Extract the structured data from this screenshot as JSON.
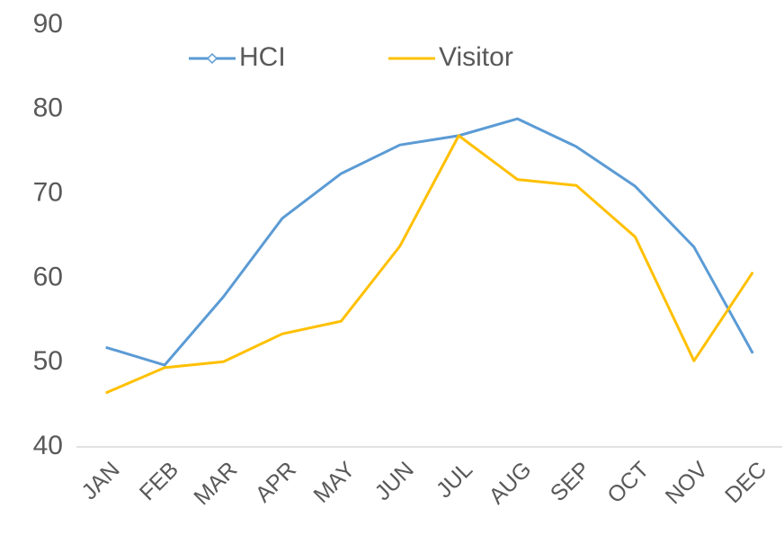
{
  "chart_data": {
    "type": "line",
    "categories": [
      "JAN",
      "FEB",
      "MAR",
      "APR",
      "MAY",
      "JUN",
      "JUL",
      "AUG",
      "SEP",
      "OCT",
      "NOV",
      "DEC"
    ],
    "series": [
      {
        "name": "HCI",
        "color": "#5b9bd5",
        "values": [
          51.8,
          49.7,
          57.8,
          67.1,
          72.4,
          75.8,
          76.9,
          78.9,
          75.6,
          70.9,
          63.7,
          51.1
        ]
      },
      {
        "name": "Visitor",
        "color": "#ffc000",
        "values": [
          46.4,
          49.4,
          50.1,
          53.4,
          54.9,
          63.8,
          76.9,
          71.7,
          71.0,
          64.9,
          50.2,
          60.7
        ]
      }
    ],
    "ylim": [
      40,
      90
    ],
    "yticks": [
      40,
      50,
      60,
      70,
      80,
      90
    ],
    "grid": false
  }
}
